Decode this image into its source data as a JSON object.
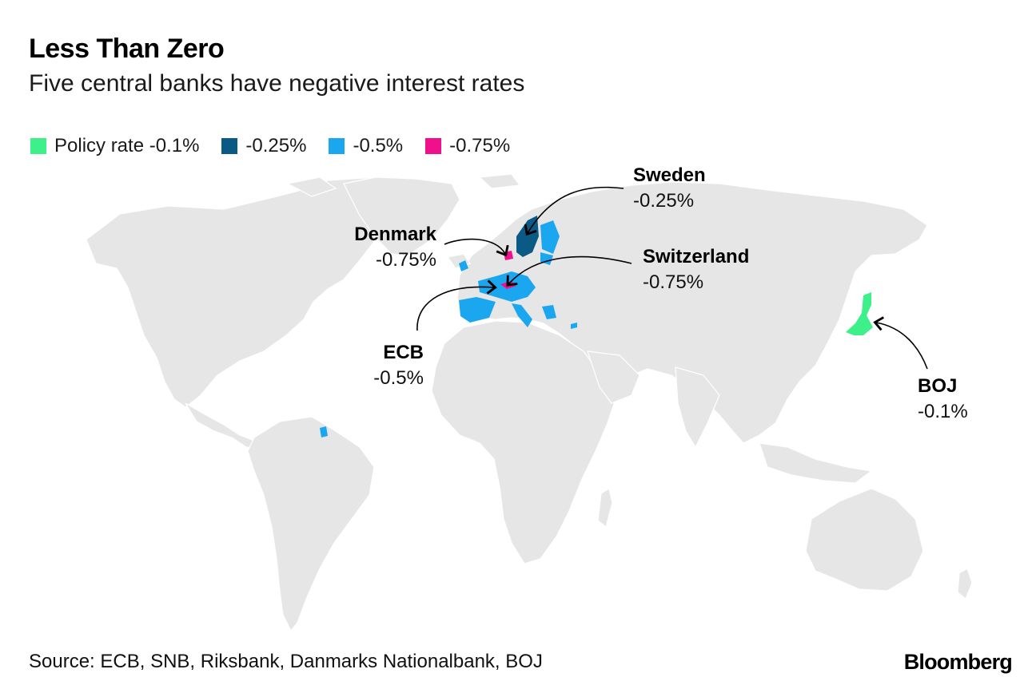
{
  "header": {
    "title": "Less Than Zero",
    "subtitle": "Five central banks have negative interest rates"
  },
  "legend": {
    "items": [
      {
        "label": "Policy rate -0.1%",
        "color": "#3df08a"
      },
      {
        "label": "-0.25%",
        "color": "#0b5a86"
      },
      {
        "label": "-0.5%",
        "color": "#1aa7f0"
      },
      {
        "label": "-0.75%",
        "color": "#f0108c"
      }
    ]
  },
  "map": {
    "land_color": "#e6e6e6",
    "border_color": "#ffffff"
  },
  "callouts": {
    "sweden": {
      "name": "Sweden",
      "rate": "-0.25%"
    },
    "denmark": {
      "name": "Denmark",
      "rate": "-0.75%"
    },
    "switzerland": {
      "name": "Switzerland",
      "rate": "-0.75%"
    },
    "ecb": {
      "name": "ECB",
      "rate": "-0.5%"
    },
    "boj": {
      "name": "BOJ",
      "rate": "-0.1%"
    }
  },
  "footer": {
    "source": "Source: ECB, SNB, Riksbank, Danmarks Nationalbank, BOJ",
    "brand": "Bloomberg"
  }
}
